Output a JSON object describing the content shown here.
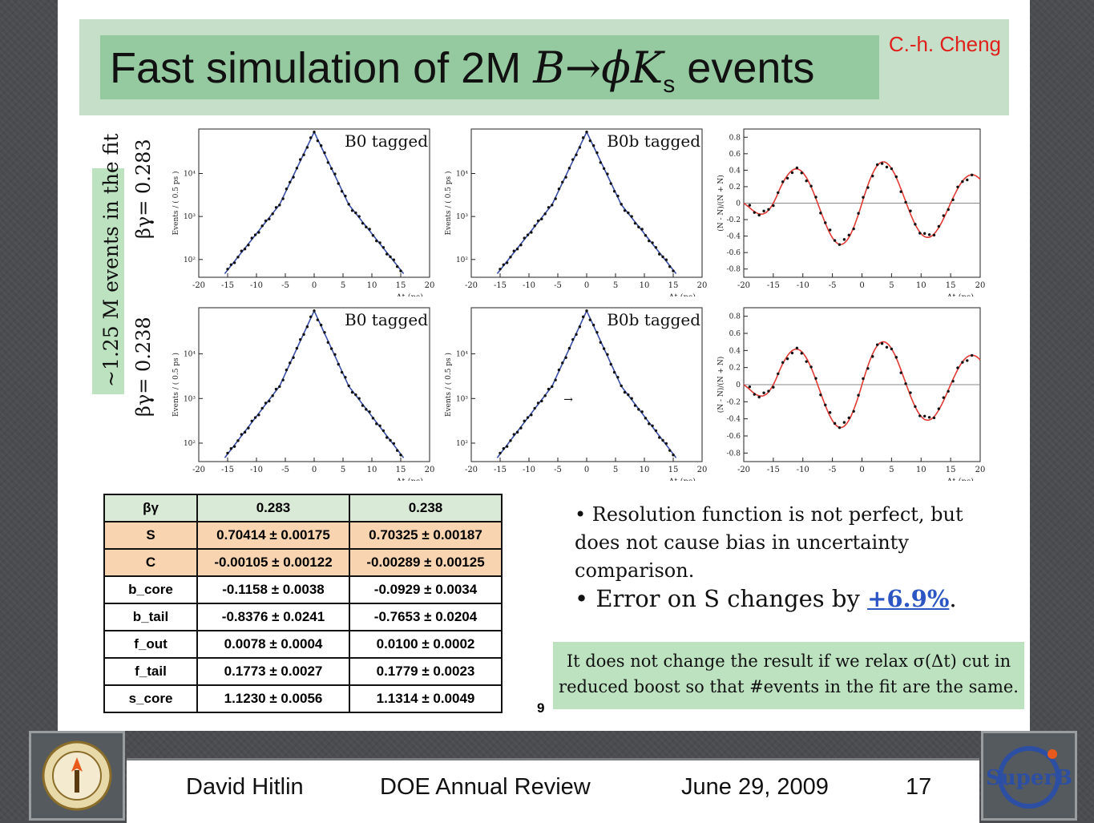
{
  "slide": {
    "title_prefix": "Fast simulation of 2M ",
    "title_B": "B",
    "title_arrow": "→",
    "title_phi": "ϕ",
    "title_K": "K",
    "title_sub": "s",
    "title_suffix": " events",
    "author": "C.-h. Cheng"
  },
  "plots": {
    "row_label_top": "βγ= 0.283",
    "row_label_bottom": "βγ= 0.238",
    "events_label": "~1.25 M events in the fit",
    "tag_b0": "B0 tagged",
    "tag_b0b": "B0b tagged",
    "xaxis_label": "Δt (ps)",
    "yaxis_events": "Events / ( 0.5 ps )",
    "yaxis_asym": "(N - N)/(N + N)",
    "arrow_glyph": "→",
    "x_ticks": [
      "-20",
      "-15",
      "-10",
      "-5",
      "0",
      "5",
      "10",
      "15",
      "20"
    ],
    "log_ticks": [
      "10²",
      "10³",
      "10⁴"
    ],
    "asym_ticks": [
      "0.8",
      "0.6",
      "0.4",
      "0.2",
      "0",
      "-0.2",
      "-0.4",
      "-0.6",
      "-0.8"
    ]
  },
  "table": {
    "header": [
      "βγ",
      "0.283",
      "0.238"
    ],
    "rows": [
      {
        "name": "S",
        "v1": "0.70414 ± 0.00175",
        "v2": "0.70325 ± 0.00187",
        "highlight": true
      },
      {
        "name": "C",
        "v1": "-0.00105 ± 0.00122",
        "v2": "-0.00289 ± 0.00125",
        "highlight": true
      },
      {
        "name": "b_core",
        "v1": "-0.1158 ± 0.0038",
        "v2": "-0.0929 ± 0.0034"
      },
      {
        "name": "b_tail",
        "v1": "-0.8376 ± 0.0241",
        "v2": "-0.7653 ± 0.0204"
      },
      {
        "name": "f_out",
        "v1": "0.0078 ± 0.0004",
        "v2": "0.0100 ± 0.0002"
      },
      {
        "name": "f_tail",
        "v1": "0.1773 ± 0.0027",
        "v2": "0.1779 ± 0.0023"
      },
      {
        "name": "s_core",
        "v1": "1.1230 ± 0.0056",
        "v2": "1.1314 ± 0.0049"
      }
    ]
  },
  "bullets": {
    "b1": "• Resolution function is not perfect, but does not cause bias in uncertainty comparison.",
    "b2_prefix": "• Error on S changes by ",
    "b2_value": "+6.9%",
    "b2_suffix": "."
  },
  "note": "It does not change the result if we relax σ(Δt) cut in reduced boost so that #events in the fit are the same.",
  "inner_page_number": "9",
  "footer": {
    "presenter": "David Hitlin",
    "event": "DOE Annual Review",
    "date": "June 29, 2009",
    "page": "17",
    "right_logo_text": "SuperB"
  },
  "colors": {
    "fit_line": "#3a4fa8",
    "asym_curve": "#e03a35",
    "title_bg": "#95c9a0",
    "header_bg": "#c6dfc9",
    "highlight_row": "#f8d5b0",
    "note_bg": "#bde2c0",
    "author": "#e0201b"
  }
}
